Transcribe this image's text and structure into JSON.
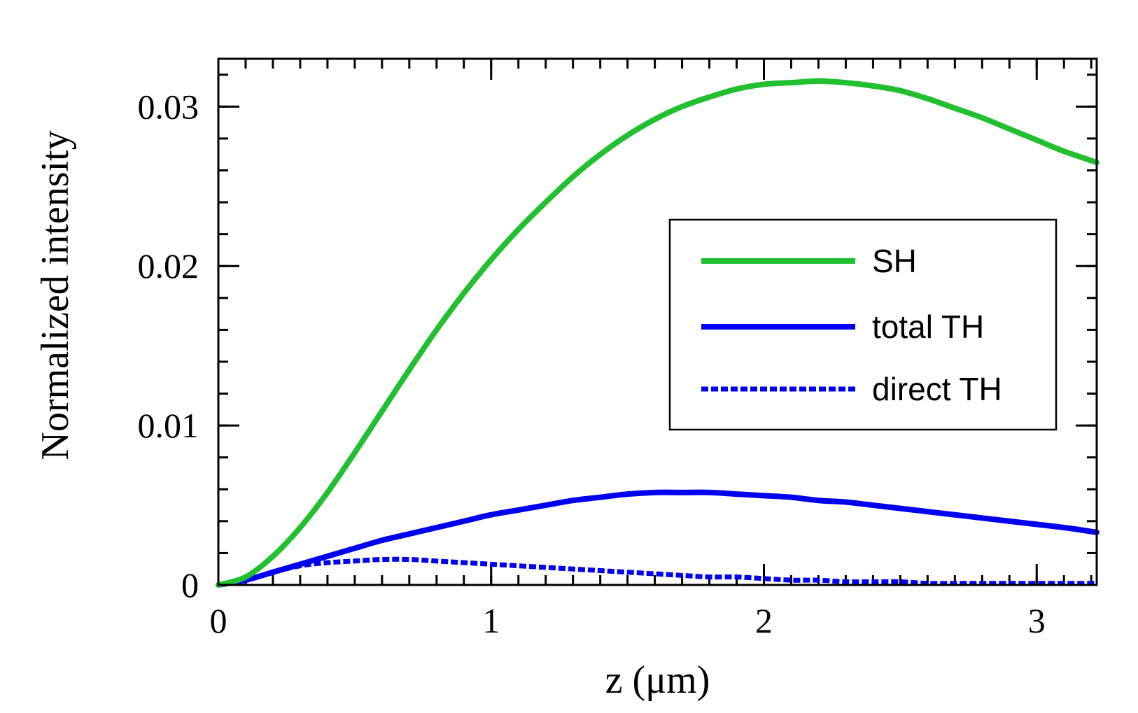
{
  "chart_data": {
    "type": "line",
    "title": "",
    "xlabel": "z (μm)",
    "ylabel": "Normalized intensity",
    "xlim": [
      0,
      3.22
    ],
    "ylim": [
      0,
      0.033
    ],
    "x_ticks": [
      {
        "value": 0,
        "label": "0"
      },
      {
        "value": 1,
        "label": "1"
      },
      {
        "value": 2,
        "label": "2"
      },
      {
        "value": 3,
        "label": "3"
      }
    ],
    "y_ticks": [
      {
        "value": 0,
        "label": "0"
      },
      {
        "value": 0.01,
        "label": "0.01"
      },
      {
        "value": 0.02,
        "label": "0.02"
      },
      {
        "value": 0.03,
        "label": "0.03"
      }
    ],
    "x_minor_step": 0.1,
    "y_minor_step": 0.002,
    "grid": false,
    "legend_position": "right",
    "series": [
      {
        "name": "SH",
        "color": "#22c030",
        "dash": "solid",
        "x": [
          0,
          0.1,
          0.2,
          0.3,
          0.4,
          0.5,
          0.6,
          0.7,
          0.8,
          0.9,
          1.0,
          1.1,
          1.2,
          1.3,
          1.4,
          1.5,
          1.6,
          1.7,
          1.8,
          1.9,
          2.0,
          2.1,
          2.2,
          2.3,
          2.4,
          2.5,
          2.6,
          2.7,
          2.8,
          2.9,
          3.0,
          3.1,
          3.22
        ],
        "values": [
          0,
          0.0005,
          0.0018,
          0.0036,
          0.0058,
          0.0083,
          0.0109,
          0.0135,
          0.016,
          0.0183,
          0.0204,
          0.0223,
          0.024,
          0.0256,
          0.027,
          0.0282,
          0.0292,
          0.03,
          0.0306,
          0.0311,
          0.0314,
          0.0315,
          0.0316,
          0.0315,
          0.0313,
          0.031,
          0.0305,
          0.0299,
          0.0293,
          0.0286,
          0.0279,
          0.0272,
          0.0265
        ]
      },
      {
        "name": "total TH",
        "color": "#0000ee",
        "dash": "solid",
        "x": [
          0,
          0.1,
          0.2,
          0.3,
          0.4,
          0.5,
          0.6,
          0.7,
          0.8,
          0.9,
          1.0,
          1.1,
          1.2,
          1.3,
          1.4,
          1.5,
          1.6,
          1.7,
          1.8,
          1.9,
          2.0,
          2.1,
          2.2,
          2.3,
          2.4,
          2.5,
          2.6,
          2.7,
          2.8,
          2.9,
          3.0,
          3.1,
          3.22
        ],
        "values": [
          0,
          0.0003,
          0.0008,
          0.0013,
          0.0018,
          0.0023,
          0.0028,
          0.0032,
          0.0036,
          0.004,
          0.0044,
          0.0047,
          0.005,
          0.0053,
          0.0055,
          0.0057,
          0.0058,
          0.0058,
          0.0058,
          0.0057,
          0.0056,
          0.0055,
          0.0053,
          0.0052,
          0.005,
          0.0048,
          0.0046,
          0.0044,
          0.0042,
          0.004,
          0.0038,
          0.0036,
          0.0033
        ]
      },
      {
        "name": "direct TH",
        "color": "#0000ee",
        "dash": "dotted",
        "x": [
          0,
          0.1,
          0.2,
          0.3,
          0.4,
          0.5,
          0.6,
          0.7,
          0.8,
          0.9,
          1.0,
          1.1,
          1.2,
          1.3,
          1.4,
          1.5,
          1.6,
          1.7,
          1.8,
          1.9,
          2.0,
          2.1,
          2.2,
          2.3,
          2.4,
          2.5,
          2.6,
          2.7,
          2.8,
          2.9,
          3.0,
          3.1,
          3.22
        ],
        "values": [
          0,
          0.0003,
          0.0008,
          0.0012,
          0.0014,
          0.0015,
          0.0016,
          0.0016,
          0.0015,
          0.0014,
          0.0013,
          0.0012,
          0.0011,
          0.001,
          0.0009,
          0.0008,
          0.0007,
          0.0006,
          0.0005,
          0.0005,
          0.0004,
          0.0003,
          0.0003,
          0.0002,
          0.0002,
          0.0002,
          0.0001,
          0.0001,
          0.0001,
          0.0001,
          0.0001,
          0.0001,
          0.0001
        ]
      }
    ]
  }
}
